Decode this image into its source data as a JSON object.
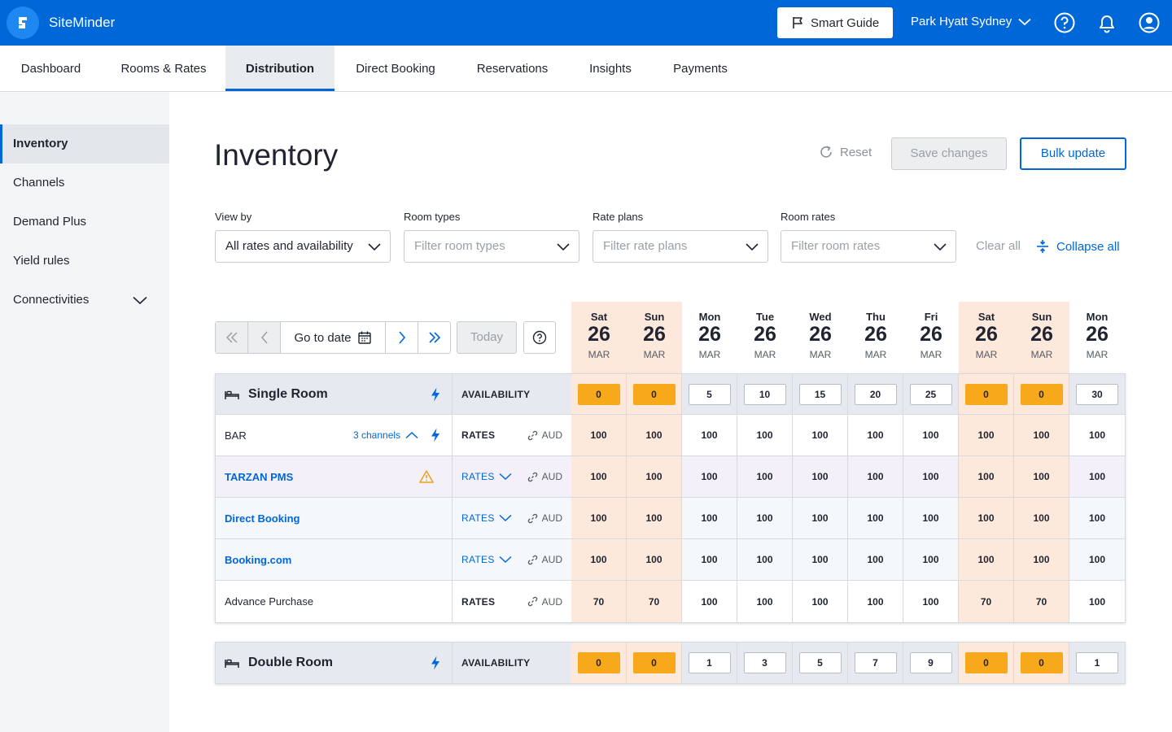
{
  "app": {
    "name": "SiteMinder"
  },
  "header": {
    "smart_guide": "Smart Guide",
    "property": "Park Hyatt Sydney"
  },
  "tabs": [
    "Dashboard",
    "Rooms & Rates",
    "Distribution",
    "Direct Booking",
    "Reservations",
    "Insights",
    "Payments"
  ],
  "active_tab": "Distribution",
  "sidebar": {
    "items": [
      "Inventory",
      "Channels",
      "Demand Plus",
      "Yield rules",
      "Connectivities"
    ],
    "active": "Inventory"
  },
  "page": {
    "title": "Inventory",
    "reset": "Reset",
    "save": "Save changes",
    "bulk": "Bulk update"
  },
  "filters": {
    "view_by": {
      "label": "View by",
      "value": "All rates and availability"
    },
    "room_types": {
      "label": "Room types",
      "placeholder": "Filter room types"
    },
    "rate_plans": {
      "label": "Rate plans",
      "placeholder": "Filter rate plans"
    },
    "room_rates": {
      "label": "Room rates",
      "placeholder": "Filter room rates"
    },
    "clear_all": "Clear all",
    "collapse_all": "Collapse all"
  },
  "nav": {
    "goto": "Go to date",
    "today": "Today"
  },
  "dates": [
    {
      "day": "Sat",
      "date": "26",
      "month": "MAR",
      "weekend": true
    },
    {
      "day": "Sun",
      "date": "26",
      "month": "MAR",
      "weekend": true
    },
    {
      "day": "Mon",
      "date": "26",
      "month": "MAR",
      "weekend": false
    },
    {
      "day": "Tue",
      "date": "26",
      "month": "MAR",
      "weekend": false
    },
    {
      "day": "Wed",
      "date": "26",
      "month": "MAR",
      "weekend": false
    },
    {
      "day": "Thu",
      "date": "26",
      "month": "MAR",
      "weekend": false
    },
    {
      "day": "Fri",
      "date": "26",
      "month": "MAR",
      "weekend": false
    },
    {
      "day": "Sat",
      "date": "26",
      "month": "MAR",
      "weekend": true
    },
    {
      "day": "Sun",
      "date": "26",
      "month": "MAR",
      "weekend": true
    },
    {
      "day": "Mon",
      "date": "26",
      "month": "MAR",
      "weekend": false
    }
  ],
  "labels": {
    "availability": "AVAILABILITY",
    "rates": "RATES",
    "currency": "AUD"
  },
  "single_room": {
    "name": "Single Room",
    "availability": [
      "0",
      "0",
      "5",
      "10",
      "15",
      "20",
      "25",
      "0",
      "0",
      "30"
    ],
    "rows": [
      {
        "name": "BAR",
        "style": "white",
        "channels": "3 channels",
        "rates_link": false,
        "link": false,
        "warn": false,
        "values": [
          "100",
          "100",
          "100",
          "100",
          "100",
          "100",
          "100",
          "100",
          "100",
          "100"
        ]
      },
      {
        "name": "TARZAN PMS",
        "style": "purple",
        "rates_link": true,
        "link": true,
        "warn": true,
        "values": [
          "100",
          "100",
          "100",
          "100",
          "100",
          "100",
          "100",
          "100",
          "100",
          "100"
        ]
      },
      {
        "name": "Direct Booking",
        "style": "blue",
        "rates_link": true,
        "link": true,
        "warn": false,
        "values": [
          "100",
          "100",
          "100",
          "100",
          "100",
          "100",
          "100",
          "100",
          "100",
          "100"
        ]
      },
      {
        "name": "Booking.com",
        "style": "blue",
        "rates_link": true,
        "link": true,
        "warn": false,
        "values": [
          "100",
          "100",
          "100",
          "100",
          "100",
          "100",
          "100",
          "100",
          "100",
          "100"
        ]
      },
      {
        "name": "Advance Purchase",
        "style": "white",
        "rates_link": false,
        "link": false,
        "warn": false,
        "values": [
          "70",
          "70",
          "100",
          "100",
          "100",
          "100",
          "100",
          "70",
          "70",
          "100"
        ]
      }
    ]
  },
  "double_room": {
    "name": "Double Room",
    "availability": [
      "0",
      "0",
      "1",
      "3",
      "5",
      "7",
      "9",
      "0",
      "0",
      "1"
    ]
  },
  "colors": {
    "primary": "#0067d8",
    "weekend": "#fde8dc",
    "zero_availability": "#f8a81b",
    "warning": "#e8a317"
  }
}
